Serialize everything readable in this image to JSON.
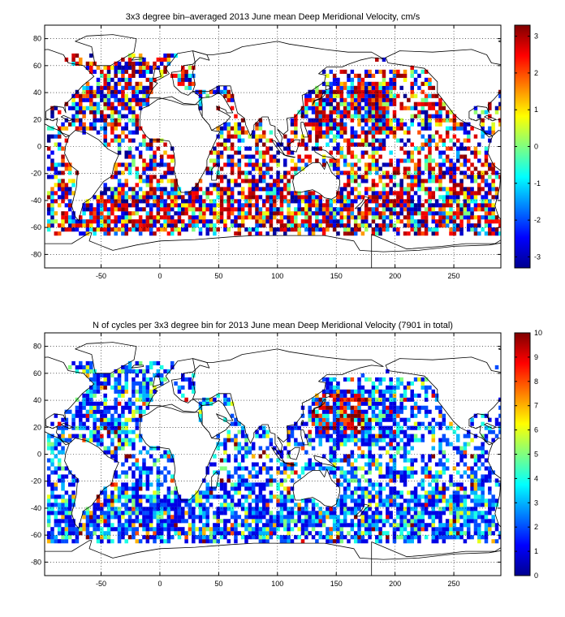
{
  "chart_data": [
    {
      "type": "heatmap",
      "title": "3x3 degree bin–averaged 2013 June mean Deep Meridional Velocity, cm/s",
      "xlim": [
        -98,
        290
      ],
      "ylim": [
        -90,
        90
      ],
      "x_ticks": [
        -50,
        0,
        50,
        100,
        150,
        200,
        250
      ],
      "y_ticks": [
        -80,
        -60,
        -40,
        -20,
        0,
        20,
        40,
        60,
        80
      ],
      "bin_size_deg": 3,
      "colorbar": {
        "colormap": "jet",
        "min": -3.3,
        "max": 3.3,
        "ticks": [
          -3,
          -2,
          -1,
          0,
          1,
          2,
          3
        ]
      },
      "grid": "on"
    },
    {
      "type": "heatmap",
      "title": "N of cycles per 3x3 degree bin for 2013 June mean Deep Meridional Velocity (7901 in total)",
      "xlim": [
        -98,
        290
      ],
      "ylim": [
        -90,
        90
      ],
      "x_ticks": [
        -50,
        0,
        50,
        100,
        150,
        200,
        250
      ],
      "y_ticks": [
        -80,
        -60,
        -40,
        -20,
        0,
        20,
        40,
        60,
        80
      ],
      "bin_size_deg": 3,
      "colorbar": {
        "colormap": "jet",
        "min": 0,
        "max": 10,
        "ticks": [
          0,
          1,
          2,
          3,
          4,
          5,
          6,
          7,
          8,
          9,
          10
        ]
      },
      "grid": "on"
    }
  ]
}
